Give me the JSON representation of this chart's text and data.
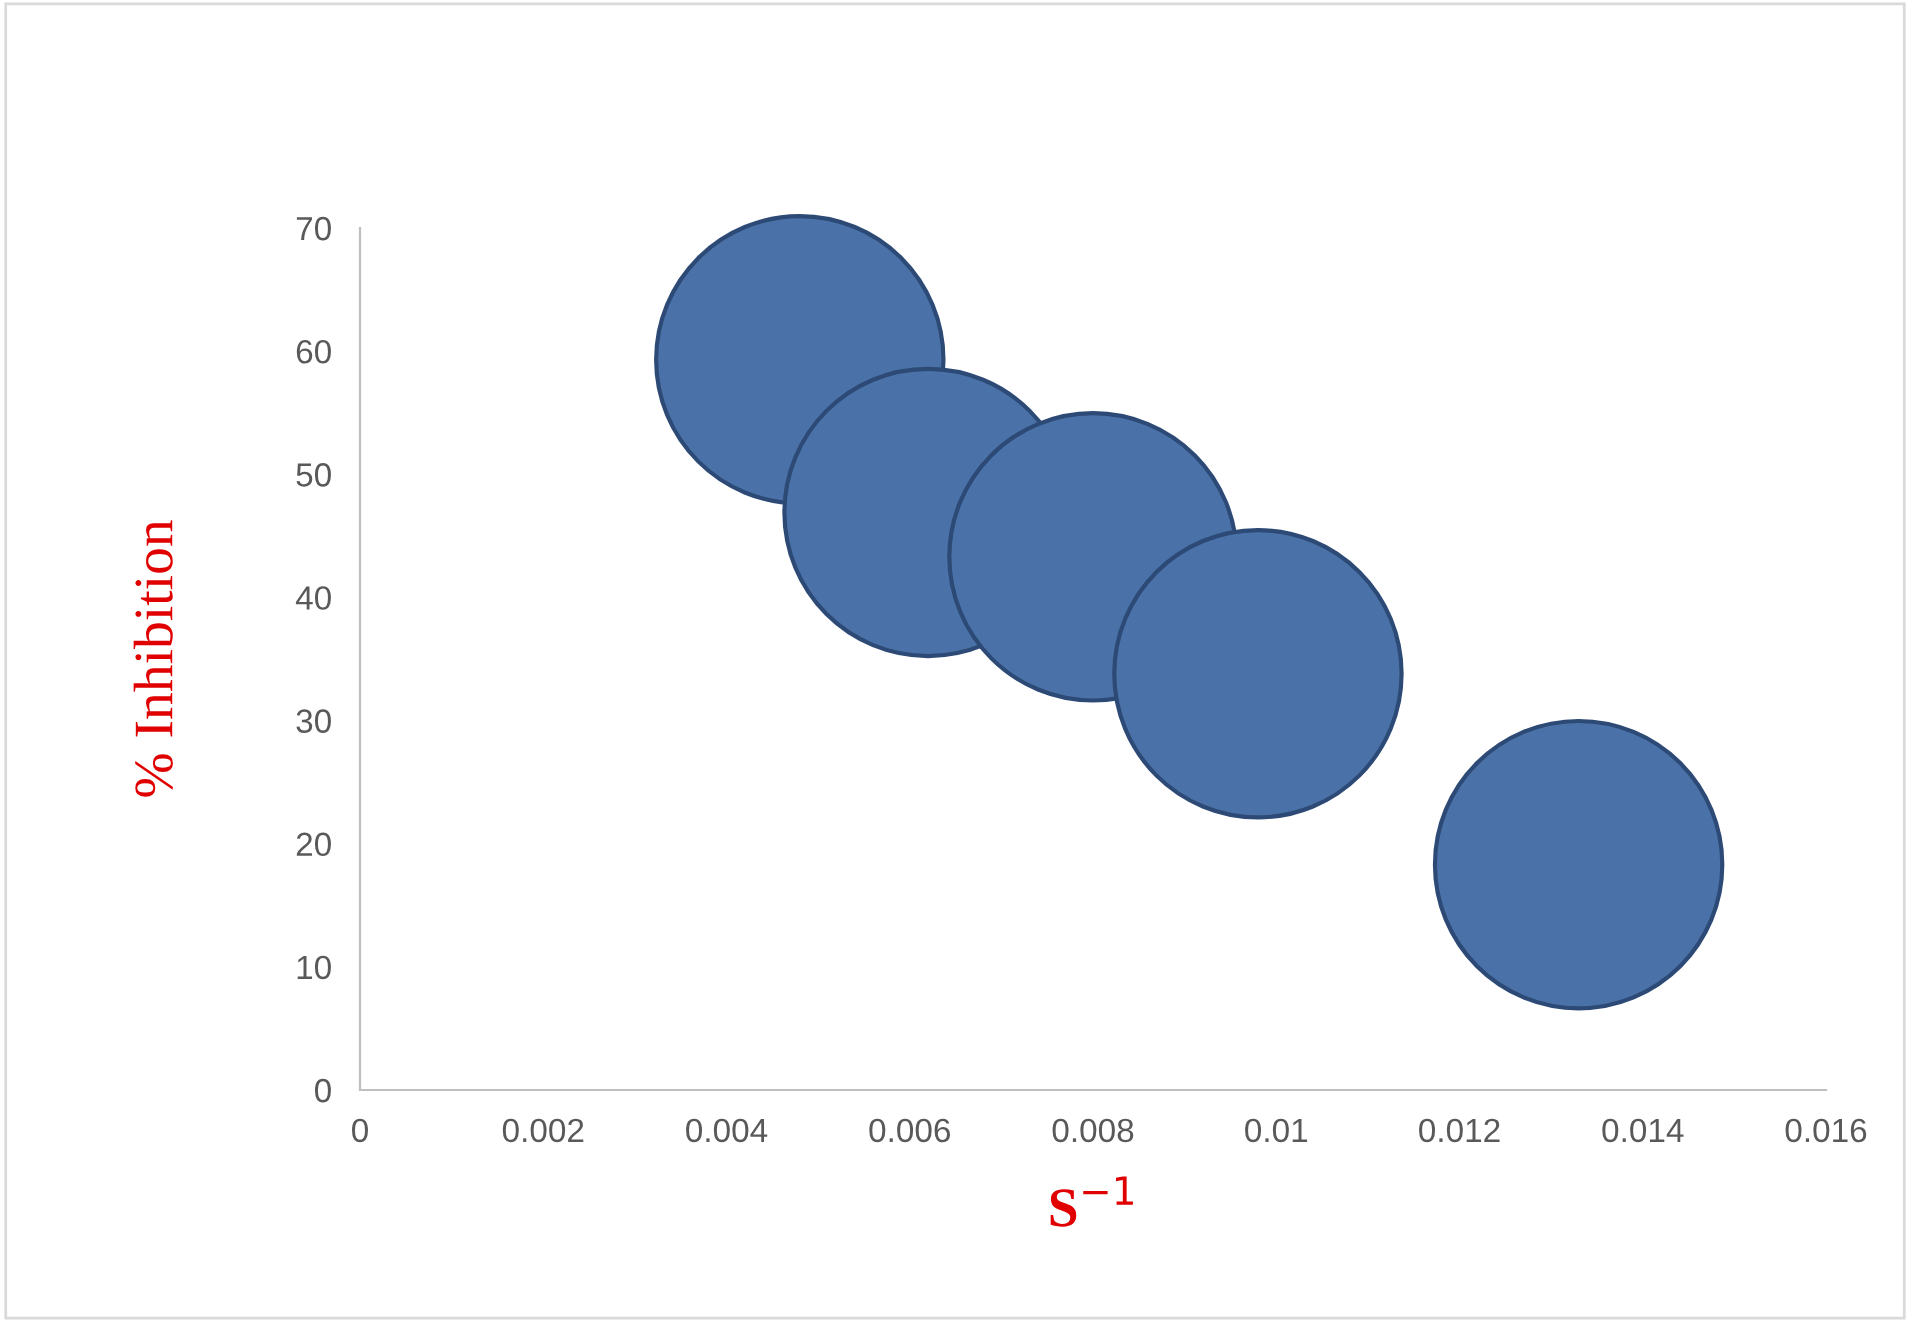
{
  "chart_data": {
    "type": "bubble",
    "xlabel": "S$^{−1}$",
    "ylabel": "% Inhibition",
    "x": [
      0.0048,
      0.0062,
      0.008,
      0.0098,
      0.0133
    ],
    "values": [
      59.3,
      46.9,
      43.3,
      33.8,
      18.3
    ],
    "sizes": [
      1,
      1,
      1,
      1,
      1
    ],
    "color": "#4a72a8",
    "xlim": [
      0,
      0.016
    ],
    "xticks": [
      0,
      0.002,
      0.004,
      0.006,
      0.008,
      0.01,
      0.012,
      0.014,
      0.016
    ],
    "ylim": [
      0,
      70
    ],
    "yticks": [
      0,
      10,
      20,
      30,
      40,
      50,
      60,
      70
    ],
    "grid": false,
    "legend": false
  }
}
